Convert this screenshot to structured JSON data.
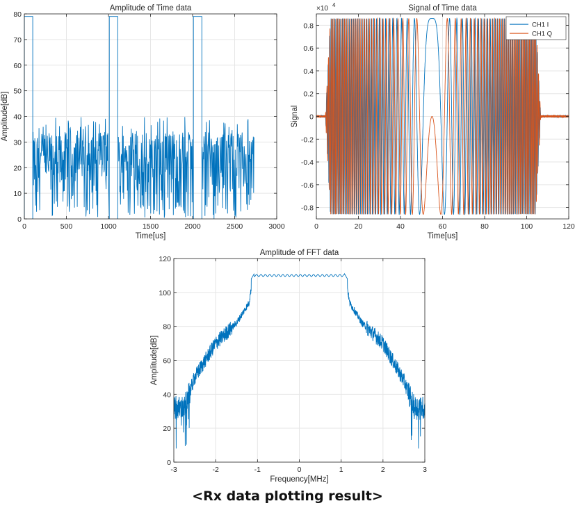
{
  "caption": "<Rx data plotting result>",
  "colors": {
    "blue": "#0072BD",
    "orange": "#D95319",
    "axis": "#262626",
    "grid": "#e6e6e6"
  },
  "chart_data": [
    {
      "id": "amp-time",
      "type": "line",
      "title": "Amplitude of Time data",
      "xlabel": "Time[us]",
      "ylabel": "Amplitude[dB]",
      "xlim": [
        0,
        3000
      ],
      "ylim": [
        0,
        80
      ],
      "xticks": [
        0,
        500,
        1000,
        1500,
        2000,
        2500,
        3000
      ],
      "yticks": [
        0,
        10,
        20,
        30,
        40,
        50,
        60,
        70,
        80
      ],
      "grid": true,
      "series": [
        {
          "color": "#0072BD",
          "pulses": [
            {
              "start": 0,
              "end": 100,
              "level": 79
            },
            {
              "start": 1010,
              "end": 1110,
              "level": 79
            },
            {
              "start": 2010,
              "end": 2110,
              "level": 79
            }
          ],
          "noise_segments": [
            [
              100,
              1000
            ],
            [
              1110,
              2000
            ],
            [
              2110,
              2730
            ]
          ],
          "noise_band": [
            2,
            40
          ]
        }
      ]
    },
    {
      "id": "sig-time",
      "type": "line",
      "title": "Signal of Time data",
      "xlabel": "Time[us]",
      "ylabel": "Signal",
      "exponent_label": "×10",
      "exponent_power": "4",
      "xlim": [
        0,
        120
      ],
      "ylim": [
        -0.9,
        0.9
      ],
      "xticks": [
        0,
        20,
        40,
        60,
        80,
        100,
        120
      ],
      "yticks": [
        -0.8,
        -0.6,
        -0.4,
        -0.2,
        0,
        0.2,
        0.4,
        0.6,
        0.8
      ],
      "grid": true,
      "legend_position": "top-right",
      "chirp": {
        "start": 5.5,
        "end": 105.5,
        "center": 55,
        "amplitude": 0.86
      },
      "series": [
        {
          "name": "CH1 I",
          "color": "#0072BD"
        },
        {
          "name": "CH1 Q",
          "color": "#D95319"
        }
      ]
    },
    {
      "id": "amp-fft",
      "type": "line",
      "title": "Amplitude of FFT data",
      "xlabel": "Frequency[MHz]",
      "ylabel": "Amplitude[dB]",
      "xlim": [
        -3,
        3
      ],
      "ylim": [
        0,
        120
      ],
      "xticks": [
        -3,
        -2,
        -1,
        0,
        1,
        2,
        3
      ],
      "yticks": [
        0,
        20,
        40,
        60,
        80,
        100,
        120
      ],
      "grid": true,
      "series": [
        {
          "color": "#0072BD",
          "envelope": [
            [
              -3,
              32
            ],
            [
              -2.75,
              32
            ],
            [
              -2.5,
              50
            ],
            [
              -2.0,
              70
            ],
            [
              -1.5,
              82
            ],
            [
              -1.2,
              94
            ],
            [
              -1.1,
              111
            ],
            [
              0,
              110
            ],
            [
              1.1,
              111
            ],
            [
              1.2,
              94
            ],
            [
              1.5,
              82
            ],
            [
              2.0,
              70
            ],
            [
              2.5,
              48
            ],
            [
              2.75,
              32
            ],
            [
              3,
              32
            ]
          ]
        }
      ]
    }
  ]
}
